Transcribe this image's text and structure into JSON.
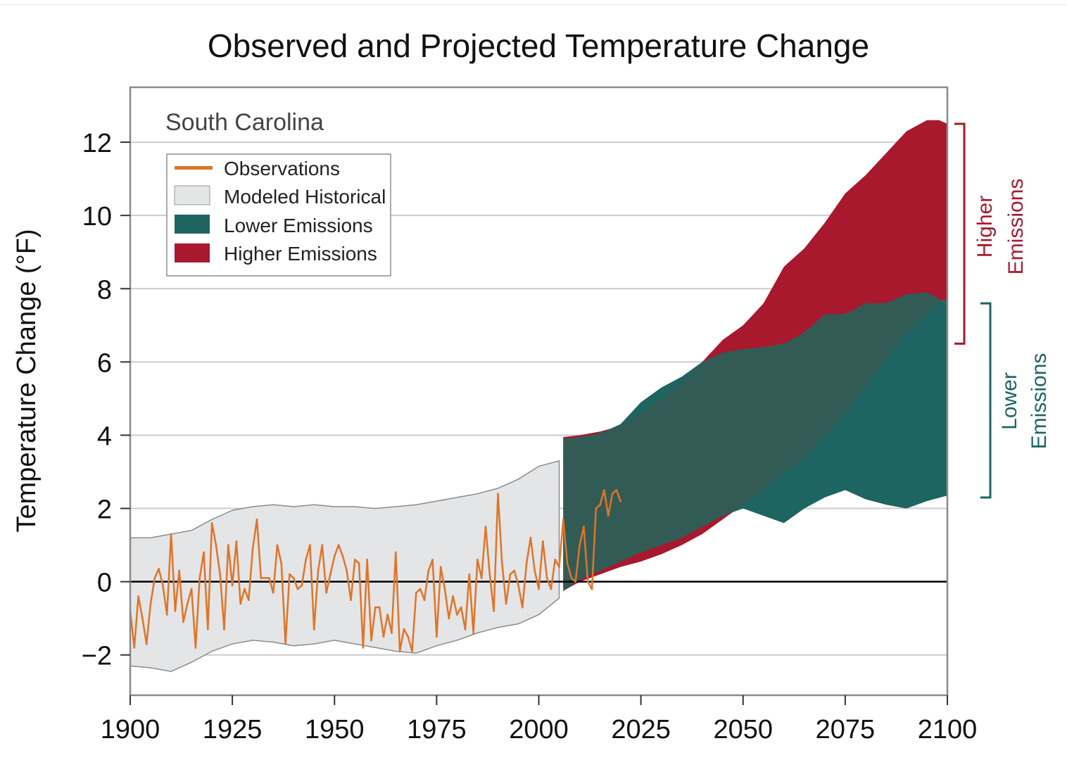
{
  "title": "Observed and Projected Temperature Change",
  "colors": {
    "observations": "#e07426",
    "modeled_historical_fill": "#e4e5e7",
    "modeled_historical_edge": "#8c8c8c",
    "lower_emissions": "#1e6561",
    "higher_emissions": "#a8192e",
    "overlap": "#325b55",
    "zero_line": "#000000",
    "grid": "#cccccc"
  },
  "chart_data": {
    "type": "area",
    "title": "Observed and Projected Temperature Change",
    "region_label": "South Carolina",
    "xlabel": "",
    "ylabel": "Temperature Change (°F)",
    "xlim": [
      1900,
      2100
    ],
    "ylim": [
      -3.1,
      13.5
    ],
    "xticks": [
      1900,
      1925,
      1950,
      1975,
      2000,
      2025,
      2050,
      2075,
      2100
    ],
    "xtick_labels": [
      "1900",
      "1925",
      "1950",
      "1975",
      "2000",
      "2025",
      "2050",
      "2075",
      "2100"
    ],
    "yticks": [
      -2,
      0,
      2,
      4,
      6,
      8,
      10,
      12
    ],
    "ytick_labels": [
      "−2",
      "0",
      "2",
      "4",
      "6",
      "8",
      "10",
      "12"
    ],
    "grid": true,
    "legend_position": "top-left",
    "legend": [
      "Observations",
      "Modeled Historical",
      "Lower Emissions",
      "Higher Emissions"
    ],
    "bracket_labels": {
      "higher": [
        "Higher",
        "Emissions"
      ],
      "lower": [
        "Lower",
        "Emissions"
      ]
    },
    "brackets": {
      "higher": [
        6.5,
        12.5
      ],
      "lower": [
        2.3,
        7.6
      ]
    },
    "modeled_historical": {
      "x": [
        1900,
        1905,
        1910,
        1915,
        1920,
        1925,
        1930,
        1935,
        1940,
        1945,
        1950,
        1955,
        1960,
        1965,
        1970,
        1975,
        1980,
        1985,
        1990,
        1995,
        2000,
        2005
      ],
      "upper": [
        1.2,
        1.2,
        1.3,
        1.4,
        1.7,
        1.95,
        2.05,
        2.1,
        2.05,
        2.1,
        2.05,
        2.05,
        2.0,
        2.05,
        2.1,
        2.2,
        2.3,
        2.4,
        2.55,
        2.8,
        3.15,
        3.3
      ],
      "lower": [
        -2.3,
        -2.35,
        -2.45,
        -2.2,
        -1.9,
        -1.7,
        -1.6,
        -1.65,
        -1.75,
        -1.7,
        -1.6,
        -1.7,
        -1.8,
        -1.9,
        -1.95,
        -1.75,
        -1.6,
        -1.4,
        -1.25,
        -1.15,
        -0.9,
        -0.45
      ]
    },
    "higher_emissions": {
      "x": [
        2006,
        2010,
        2015,
        2020,
        2025,
        2030,
        2035,
        2040,
        2045,
        2050,
        2055,
        2060,
        2065,
        2070,
        2075,
        2080,
        2085,
        2090,
        2095,
        2098,
        2100
      ],
      "upper": [
        3.95,
        4.0,
        4.1,
        4.25,
        4.6,
        5.0,
        5.4,
        6.0,
        6.6,
        7.0,
        7.6,
        8.6,
        9.1,
        9.8,
        10.6,
        11.1,
        11.7,
        12.3,
        12.6,
        12.6,
        12.5
      ],
      "lower": [
        -0.25,
        0.0,
        0.2,
        0.4,
        0.55,
        0.75,
        1.0,
        1.3,
        1.7,
        2.1,
        2.5,
        3.0,
        3.4,
        4.0,
        4.6,
        5.3,
        6.1,
        6.8,
        7.3,
        7.65,
        7.7
      ]
    },
    "lower_emissions": {
      "x": [
        2006,
        2010,
        2015,
        2020,
        2025,
        2030,
        2035,
        2040,
        2045,
        2050,
        2055,
        2060,
        2065,
        2070,
        2075,
        2080,
        2085,
        2090,
        2095,
        2100
      ],
      "upper": [
        3.9,
        3.95,
        4.05,
        4.3,
        4.9,
        5.3,
        5.6,
        6.0,
        6.25,
        6.35,
        6.4,
        6.5,
        6.8,
        7.3,
        7.3,
        7.6,
        7.6,
        7.85,
        7.9,
        7.6
      ],
      "lower": [
        -0.25,
        0.05,
        0.3,
        0.55,
        0.8,
        1.0,
        1.2,
        1.5,
        1.8,
        2.0,
        1.8,
        1.6,
        2.0,
        2.3,
        2.5,
        2.25,
        2.1,
        2.0,
        2.2,
        2.35
      ]
    },
    "observations": {
      "x": [
        1900,
        1901,
        1902,
        1903,
        1904,
        1905,
        1906,
        1907,
        1908,
        1909,
        1910,
        1911,
        1912,
        1913,
        1914,
        1915,
        1916,
        1917,
        1918,
        1919,
        1920,
        1921,
        1922,
        1923,
        1924,
        1925,
        1926,
        1927,
        1928,
        1929,
        1930,
        1931,
        1932,
        1933,
        1934,
        1935,
        1936,
        1937,
        1938,
        1939,
        1940,
        1941,
        1942,
        1943,
        1944,
        1945,
        1946,
        1947,
        1948,
        1949,
        1950,
        1951,
        1952,
        1953,
        1954,
        1955,
        1956,
        1957,
        1958,
        1959,
        1960,
        1961,
        1962,
        1963,
        1964,
        1965,
        1966,
        1967,
        1968,
        1969,
        1970,
        1971,
        1972,
        1973,
        1974,
        1975,
        1976,
        1977,
        1978,
        1979,
        1980,
        1981,
        1982,
        1983,
        1984,
        1985,
        1986,
        1987,
        1988,
        1989,
        1990,
        1991,
        1992,
        1993,
        1994,
        1995,
        1996,
        1997,
        1998,
        1999,
        2000,
        2001,
        2002,
        2003,
        2004,
        2005,
        2006,
        2007,
        2008,
        2009,
        2010,
        2011,
        2012,
        2013,
        2014,
        2015,
        2016,
        2017,
        2018,
        2019,
        2020
      ],
      "y": [
        -0.8,
        -1.8,
        -0.4,
        -1.0,
        -1.7,
        -0.6,
        0.1,
        0.35,
        -0.1,
        -0.9,
        1.3,
        -0.8,
        0.3,
        -1.1,
        -0.6,
        -0.2,
        -1.8,
        0.1,
        0.8,
        -1.3,
        1.6,
        1.0,
        0.2,
        -1.3,
        1.0,
        -0.1,
        1.1,
        -0.6,
        -0.2,
        -0.5,
        0.9,
        1.7,
        0.1,
        0.1,
        0.1,
        -0.3,
        1.0,
        0.5,
        -1.7,
        0.2,
        0.1,
        -0.2,
        -0.1,
        0.6,
        1.0,
        -1.3,
        0.3,
        1.0,
        -0.3,
        0.2,
        0.7,
        1.0,
        0.7,
        0.3,
        -0.5,
        0.6,
        0.5,
        -1.8,
        0.6,
        -1.6,
        -0.7,
        -0.7,
        -1.5,
        -0.9,
        -1.4,
        0.8,
        -1.9,
        -1.3,
        -1.5,
        -1.9,
        -0.3,
        -0.2,
        -0.5,
        0.3,
        0.6,
        -1.5,
        0.4,
        -0.2,
        -1.0,
        -0.4,
        -0.9,
        -0.7,
        -1.3,
        0.2,
        -1.4,
        0.6,
        0.1,
        1.5,
        0.2,
        -0.8,
        2.4,
        0.5,
        -0.6,
        0.2,
        0.3,
        -0.1,
        -0.7,
        0.5,
        1.2,
        0.3,
        -0.2,
        1.1,
        0.1,
        -0.2,
        0.6,
        0.4,
        1.7,
        0.5,
        0.1,
        0.0,
        1.0,
        1.5,
        0.0,
        -0.2,
        2.0,
        2.1,
        2.5,
        1.8,
        2.4,
        2.5,
        2.2
      ]
    }
  }
}
